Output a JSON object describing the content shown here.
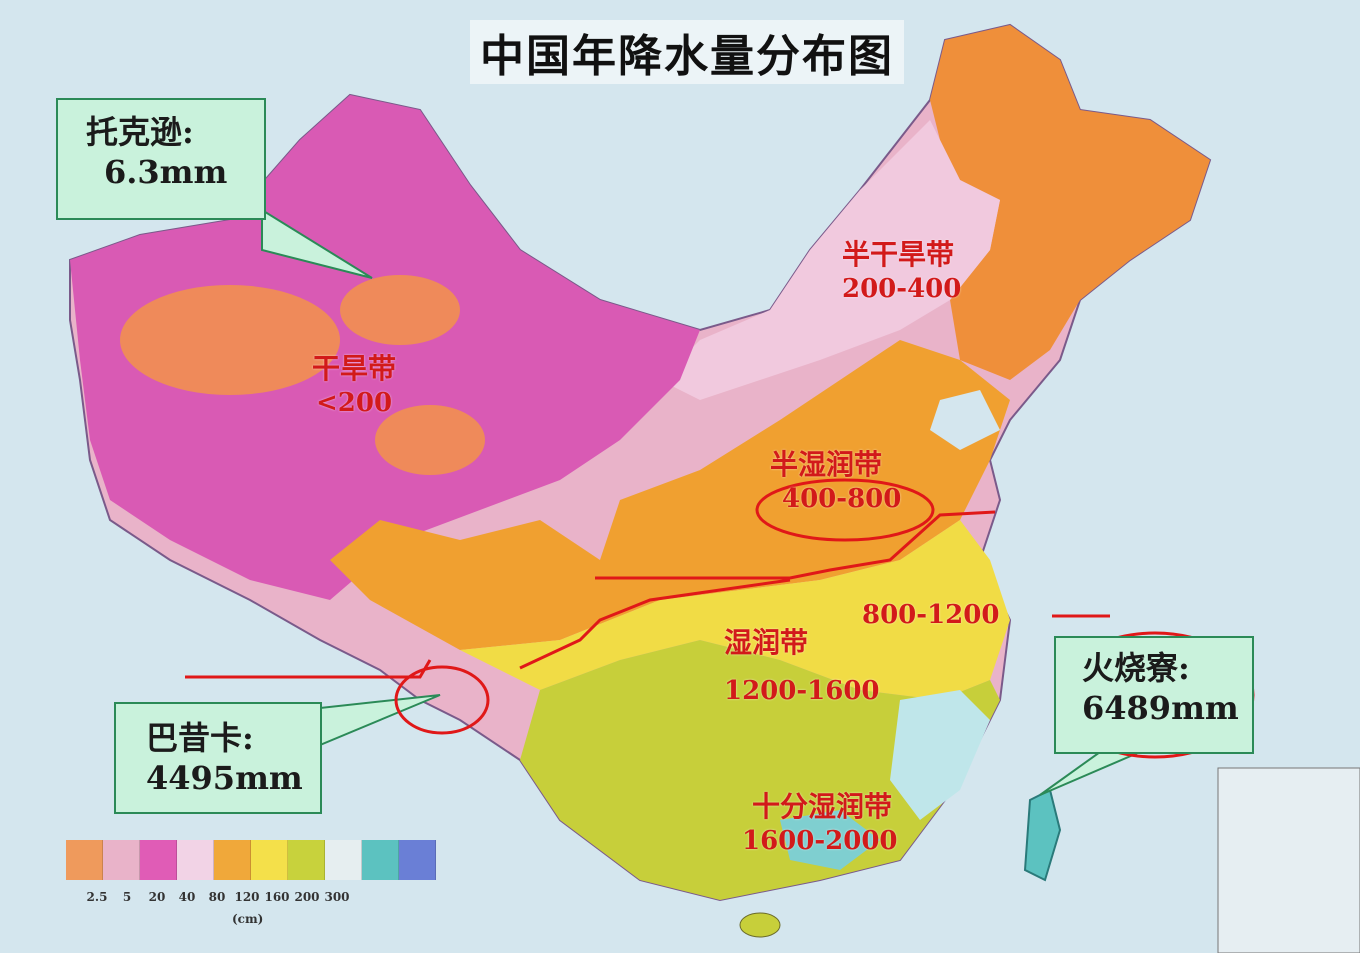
{
  "title": "中国年降水量分布图",
  "zones": [
    {
      "name": "干旱带",
      "range": "<200"
    },
    {
      "name": "半干旱带",
      "range": "200-400"
    },
    {
      "name": "半湿润带",
      "range": "400-800"
    },
    {
      "name": "湿润带",
      "range": "800-1200"
    },
    {
      "name": "湿润带",
      "range": "1200-1600"
    },
    {
      "name": "十分湿润带",
      "range": "1600-2000"
    }
  ],
  "callouts": {
    "tuokexun": {
      "name": "托克逊:",
      "value": "6.3mm"
    },
    "baxika": {
      "name": "巴昔卡:",
      "value": "4495mm"
    },
    "huoshaoliao": {
      "name": "火烧寮:",
      "value": "6489mm"
    }
  },
  "legend": {
    "ticks": [
      "2.5",
      "5",
      "20",
      "40",
      "80",
      "120",
      "160",
      "200",
      "300"
    ],
    "unit": "(cm)",
    "colors": [
      "#ef9a5c",
      "#e9b3c9",
      "#e05cb6",
      "#f2d3e6",
      "#f0a83a",
      "#f4e04a",
      "#c8d23c",
      "#e6eef0",
      "#5cc2c0",
      "#6a7fd6"
    ]
  },
  "colors": {
    "annotation_red": "#e01818",
    "callout_fill": "#c9f2dc",
    "zone_text": "#d21a1a"
  }
}
